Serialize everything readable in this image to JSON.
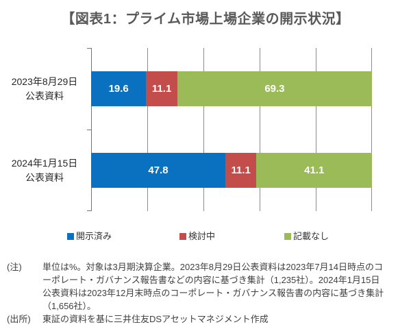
{
  "title": "【図表1：プライム市場上場企業の開示状況】",
  "chart_data": {
    "type": "bar",
    "subtype": "horizontal-stacked",
    "unit": "%",
    "categories": [
      {
        "line1": "2023年8月29日",
        "line2": "公表資料"
      },
      {
        "line1": "2024年1月15日",
        "line2": "公表資料"
      }
    ],
    "series": [
      {
        "name": "開示済み",
        "color": "#0971BF",
        "values": [
          19.6,
          47.8
        ]
      },
      {
        "name": "検討中",
        "color": "#C24D4B",
        "values": [
          11.1,
          11.1
        ]
      },
      {
        "name": "記載なし",
        "color": "#9BBA58",
        "values": [
          69.3,
          41.1
        ]
      }
    ],
    "xlim": [
      0,
      100
    ],
    "grid_step": 20,
    "grid": true,
    "legend_position": "bottom",
    "value_label_color": "#ffffff",
    "axis_color": "#737373",
    "gridline_color": "#8c8c8c"
  },
  "legend_x_positions": [
    98,
    262,
    415
  ],
  "notes": {
    "note_label": "(注)",
    "note_text": "単位は%。対象は3月期決算企業。2023年8月29日公表資料は2023年7月14日時点のコーポレート・ガバナンス報告書などの内容に基づき集計（1,235社）。2024年1月15日公表資料は2023年12月末時点のコーポレート・ガバナンス報告書の内容に基づき集計（1,656社）。",
    "source_label": "(出所)",
    "source_text": "東証の資料を基に三井住友DSアセットマネジメント作成"
  }
}
